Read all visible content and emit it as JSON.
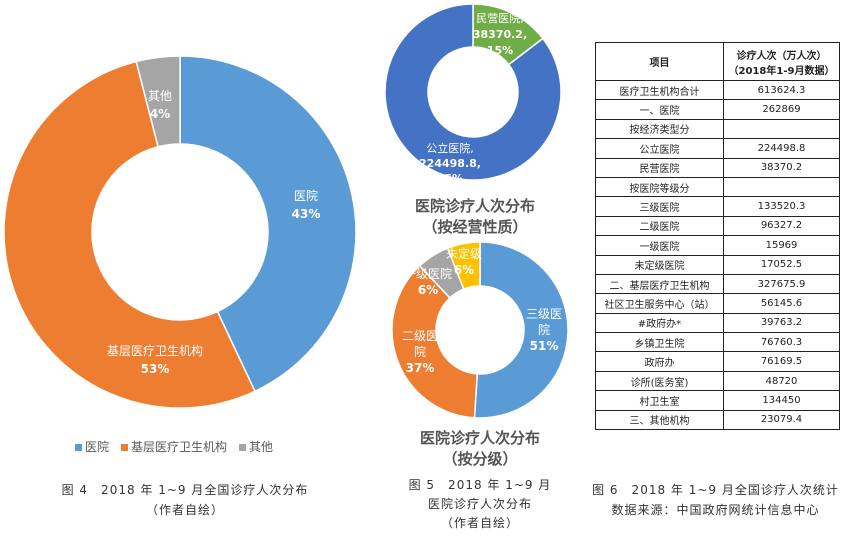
{
  "chart_data": [
    {
      "type": "pie",
      "variant": "donut",
      "id": "fig4",
      "slices": [
        {
          "label": "医院",
          "value": 43,
          "text": "43%",
          "color": "#5b9bd5"
        },
        {
          "label": "基层医疗卫生机构",
          "value": 53,
          "text": "53%",
          "color": "#ed7d31"
        },
        {
          "label": "其他",
          "value": 4,
          "text": "4%",
          "color": "#a5a5a5"
        }
      ],
      "legend": [
        "医院",
        "基层医疗卫生机构",
        "其他"
      ],
      "legend_position": "bottom",
      "caption": [
        "图 4　2018 年 1~9 月全国诊疗人次分布",
        "（作者自绘）"
      ]
    },
    {
      "type": "pie",
      "variant": "donut",
      "id": "fig5a",
      "title": [
        "医院诊疗人次分布",
        "（按经营性质）"
      ],
      "slices": [
        {
          "label": "民营医院,",
          "value": 38370.2,
          "text": "38370.2,",
          "pct": "15%",
          "color": "#70ad47"
        },
        {
          "label": "公立医院,",
          "value": 224498.8,
          "text": "224498.8,",
          "pct": "85%",
          "color": "#4472c4"
        }
      ]
    },
    {
      "type": "pie",
      "variant": "donut",
      "id": "fig5b",
      "title": [
        "医院诊疗人次分布",
        "（按分级）"
      ],
      "slices": [
        {
          "label": "三级医院",
          "value": 51,
          "text": "51%",
          "color": "#5b9bd5"
        },
        {
          "label": "二级医院",
          "value": 37,
          "text": "37%",
          "color": "#ed7d31"
        },
        {
          "label": "一级医院",
          "value": 6,
          "text": "6%",
          "color": "#a5a5a5"
        },
        {
          "label": "未定级",
          "value": 6,
          "text": "6%",
          "color": "#ffc000"
        }
      ],
      "caption": [
        "图 5　2018 年 1~9 月",
        "医院诊疗人次分布",
        "（作者自绘）"
      ]
    }
  ],
  "table": {
    "headers": [
      "项目",
      "诊疗人次（万人次）",
      "（2018年1-9月数据）"
    ],
    "rows": [
      [
        "医疗卫生机构合计",
        "613624.3"
      ],
      [
        "一、医院",
        "262869"
      ],
      [
        "按经济类型分",
        ""
      ],
      [
        "公立医院",
        "224498.8"
      ],
      [
        "民营医院",
        "38370.2"
      ],
      [
        "按医院等级分",
        ""
      ],
      [
        "三级医院",
        "133520.3"
      ],
      [
        "二级医院",
        "96327.2"
      ],
      [
        "一级医院",
        "15969"
      ],
      [
        "未定级医院",
        "17052.5"
      ],
      [
        "二、基层医疗卫生机构",
        "327675.9"
      ],
      [
        "社区卫生服务中心（站）",
        "56145.6"
      ],
      [
        "#政府办*",
        "39763.2"
      ],
      [
        "乡镇卫生院",
        "76760.3"
      ],
      [
        "政府办",
        "76169.5"
      ],
      [
        "诊所(医务室)",
        "48720"
      ],
      [
        "村卫生室",
        "134450"
      ],
      [
        "三、其他机构",
        "23079.4"
      ]
    ],
    "caption": [
      "图 6　2018 年 1~9 月全国诊疗人次统计",
      "数据来源：中国政府网统计信息中心"
    ]
  }
}
